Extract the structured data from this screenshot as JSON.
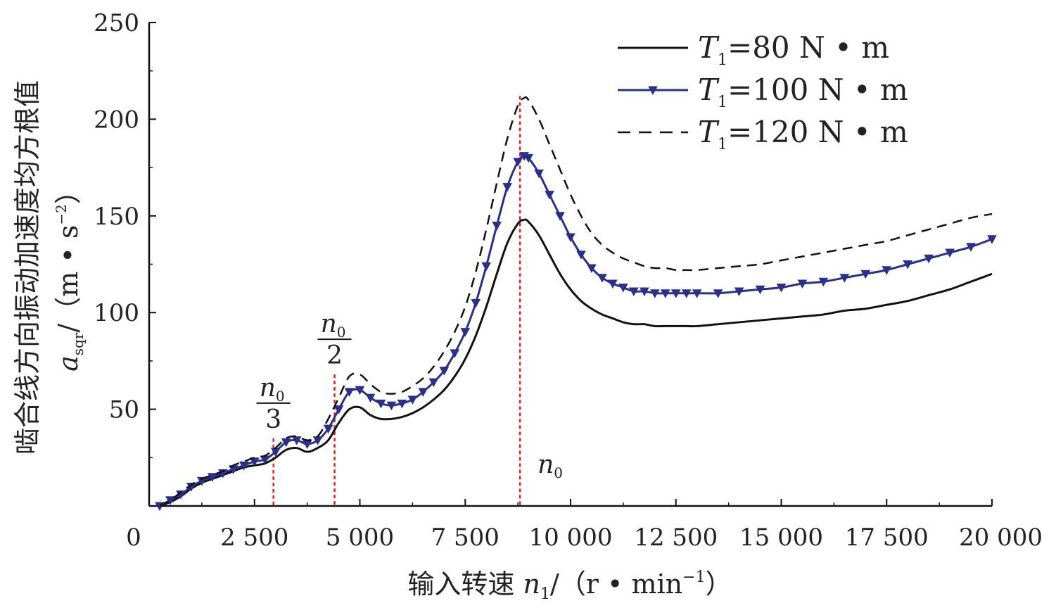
{
  "chart_data": {
    "type": "line",
    "xlabel": {
      "prefix": "输入转速 ",
      "var": "n",
      "sub": "1",
      "unit_pre": "/（r • min",
      "sup": "−1",
      "unit_post": "）"
    },
    "ylabel": {
      "text": "啮合线方向振动加速度均方根值",
      "var": "a",
      "sub": "sqr",
      "unit_pre": "/（m • s",
      "sup": "−2",
      "unit_post": "）"
    },
    "xlim": [
      0,
      20000
    ],
    "ylim": [
      0,
      250
    ],
    "x_ticks": [
      {
        "value": 0,
        "label": "0"
      },
      {
        "value": 2500,
        "label": "2 500"
      },
      {
        "value": 5000,
        "label": "5 000"
      },
      {
        "value": 7500,
        "label": "7 500"
      },
      {
        "value": 10000,
        "label": "10 000"
      },
      {
        "value": 12500,
        "label": "12 500"
      },
      {
        "value": 15000,
        "label": "15 000"
      },
      {
        "value": 17500,
        "label": "17 500"
      },
      {
        "value": 20000,
        "label": "20 000"
      }
    ],
    "y_ticks": [
      {
        "value": 50,
        "label": "50"
      },
      {
        "value": 100,
        "label": "100"
      },
      {
        "value": 150,
        "label": "150"
      },
      {
        "value": 200,
        "label": "200"
      },
      {
        "value": 250,
        "label": "250"
      }
    ],
    "grid": false,
    "legend_position": "top-right",
    "series": [
      {
        "name": "T1=80 N • m",
        "legend": {
          "var": "T",
          "sub": "1",
          "rest": "=80 N • m"
        },
        "color": "#111111",
        "style": "solid",
        "marker": "none",
        "x": [
          250,
          500,
          750,
          1000,
          1250,
          1500,
          1750,
          2000,
          2250,
          2500,
          2750,
          3000,
          3250,
          3500,
          3750,
          4000,
          4250,
          4500,
          4750,
          5000,
          5250,
          5500,
          5750,
          6000,
          6250,
          6500,
          6750,
          7000,
          7250,
          7500,
          7750,
          8000,
          8250,
          8500,
          8750,
          8900,
          9000,
          9250,
          9500,
          9750,
          10000,
          10250,
          10500,
          10750,
          11000,
          11250,
          11500,
          11750,
          12000,
          12250,
          12500,
          12750,
          13000,
          13500,
          14000,
          14500,
          15000,
          15500,
          16000,
          16500,
          17000,
          17500,
          18000,
          18500,
          19000,
          19500,
          20000
        ],
        "y": [
          0,
          2,
          5,
          9,
          12,
          14,
          16,
          18,
          20,
          21,
          22,
          25,
          29,
          30,
          28,
          30,
          34,
          43,
          50,
          51,
          47,
          45,
          45,
          46,
          48,
          51,
          55,
          60,
          67,
          76,
          88,
          103,
          120,
          136,
          146,
          148,
          147,
          140,
          130,
          120,
          112,
          106,
          102,
          99,
          97,
          95,
          94,
          94,
          93,
          93,
          93,
          93,
          93,
          94,
          95,
          96,
          97,
          98,
          99,
          101,
          102,
          104,
          106,
          109,
          112,
          116,
          120
        ]
      },
      {
        "name": "T1=100 N • m",
        "legend": {
          "var": "T",
          "sub": "1",
          "rest": "=100 N • m"
        },
        "color": "#2b2f8c",
        "style": "solid",
        "marker": "triangle-down",
        "x": [
          250,
          500,
          750,
          1000,
          1250,
          1500,
          1750,
          2000,
          2250,
          2500,
          2750,
          3000,
          3250,
          3500,
          3750,
          4000,
          4250,
          4500,
          4750,
          5000,
          5250,
          5500,
          5750,
          6000,
          6250,
          6500,
          6750,
          7000,
          7250,
          7500,
          7750,
          8000,
          8250,
          8500,
          8750,
          8900,
          9000,
          9250,
          9500,
          9750,
          10000,
          10250,
          10500,
          10750,
          11000,
          11250,
          11500,
          11750,
          12000,
          12250,
          12500,
          12750,
          13000,
          13500,
          14000,
          14500,
          15000,
          15500,
          16000,
          16500,
          17000,
          17500,
          18000,
          18500,
          19000,
          19500,
          20000
        ],
        "y": [
          0,
          3,
          6,
          10,
          13,
          15,
          17,
          19,
          21,
          23,
          24,
          28,
          33,
          34,
          32,
          34,
          40,
          50,
          59,
          60,
          56,
          53,
          52,
          53,
          55,
          59,
          64,
          70,
          79,
          90,
          105,
          124,
          145,
          165,
          178,
          181,
          180,
          172,
          161,
          150,
          139,
          130,
          123,
          118,
          115,
          113,
          111,
          111,
          110,
          110,
          110,
          110,
          110,
          110,
          111,
          112,
          113,
          115,
          116,
          118,
          120,
          122,
          125,
          128,
          131,
          134,
          138
        ]
      },
      {
        "name": "T1=120 N • m",
        "legend": {
          "var": "T",
          "sub": "1",
          "rest": "=120 N • m"
        },
        "color": "#111111",
        "style": "dashed",
        "marker": "none",
        "x": [
          250,
          500,
          750,
          1000,
          1250,
          1500,
          1750,
          2000,
          2250,
          2500,
          2750,
          3000,
          3250,
          3500,
          3750,
          4000,
          4250,
          4500,
          4750,
          5000,
          5250,
          5500,
          5750,
          6000,
          6250,
          6500,
          6750,
          7000,
          7250,
          7500,
          7750,
          8000,
          8250,
          8500,
          8750,
          8900,
          9000,
          9250,
          9500,
          9750,
          10000,
          10250,
          10500,
          10750,
          11000,
          11250,
          11500,
          11750,
          12000,
          12250,
          12500,
          12750,
          13000,
          13500,
          14000,
          14500,
          15000,
          15500,
          16000,
          16500,
          17000,
          17500,
          18000,
          18500,
          19000,
          19500,
          20000
        ],
        "y": [
          0,
          3,
          7,
          11,
          14,
          16,
          18,
          21,
          23,
          25,
          26,
          30,
          35,
          36,
          34,
          36,
          45,
          56,
          67,
          68,
          63,
          59,
          58,
          59,
          62,
          66,
          72,
          80,
          90,
          103,
          121,
          143,
          167,
          190,
          207,
          211,
          210,
          200,
          187,
          174,
          161,
          150,
          141,
          135,
          131,
          128,
          126,
          124,
          123,
          123,
          122,
          122,
          122,
          123,
          124,
          125,
          127,
          129,
          131,
          133,
          135,
          137,
          140,
          143,
          146,
          149,
          151
        ]
      }
    ],
    "annotations": [
      {
        "x": 2950,
        "y_top": 35,
        "var": "n",
        "sub": "0",
        "den": "3"
      },
      {
        "x": 4400,
        "y_top": 68,
        "var": "n",
        "sub": "0",
        "den": "2"
      },
      {
        "x": 8800,
        "y_top": 212,
        "var": "n",
        "sub": "0",
        "den": ""
      }
    ],
    "ref_line_color": "#e02020"
  }
}
